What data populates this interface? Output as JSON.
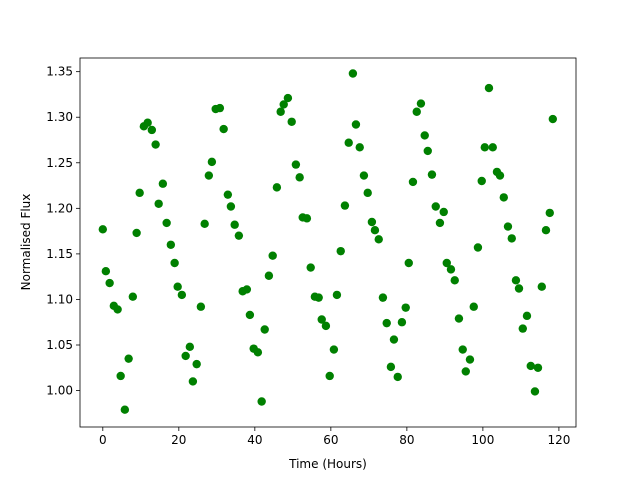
{
  "chart_data": {
    "type": "scatter",
    "xlabel": "Time (Hours)",
    "ylabel": "Normalised Flux",
    "color": "#008000",
    "xlim": [
      -6,
      124.5
    ],
    "ylim": [
      0.96,
      1.365
    ],
    "xticks": [
      0,
      20,
      40,
      60,
      80,
      100,
      120
    ],
    "yticks": [
      {
        "value": 1.0,
        "label": "1.00"
      },
      1.05,
      {
        "value": 1.1,
        "label": "1.10"
      },
      1.15,
      {
        "value": 1.2,
        "label": "1.20"
      },
      1.25,
      {
        "value": 1.3,
        "label": "1.30"
      },
      1.35
    ],
    "x": [
      0,
      0.8,
      1.8,
      2.9,
      3.9,
      4.7,
      5.8,
      6.8,
      7.9,
      8.9,
      9.7,
      10.8,
      11.8,
      12.9,
      13.9,
      14.7,
      15.8,
      16.8,
      17.9,
      18.9,
      19.7,
      20.8,
      21.8,
      22.9,
      23.7,
      24.7,
      25.8,
      26.8,
      27.9,
      28.7,
      29.7,
      30.8,
      31.8,
      32.9,
      33.7,
      34.7,
      35.8,
      36.8,
      37.9,
      38.7,
      39.7,
      40.8,
      41.8,
      42.6,
      43.7,
      44.7,
      45.8,
      46.8,
      47.6,
      48.7,
      49.7,
      50.8,
      51.8,
      52.6,
      53.7,
      54.7,
      55.8,
      56.8,
      57.6,
      58.7,
      59.7,
      60.8,
      61.6,
      62.6,
      63.7,
      64.7,
      65.8,
      66.6,
      67.6,
      68.7,
      69.7,
      70.8,
      71.6,
      72.6,
      73.7,
      74.7,
      75.8,
      76.6,
      77.6,
      78.7,
      79.7,
      80.5,
      81.6,
      82.6,
      83.7,
      84.7,
      85.5,
      86.6,
      87.6,
      88.7,
      89.7,
      90.5,
      91.6,
      92.6,
      93.7,
      94.7,
      95.5,
      96.6,
      97.6,
      98.7,
      99.7,
      100.5,
      101.6,
      102.6,
      103.7,
      104.5,
      105.5,
      106.6,
      107.6,
      108.7,
      109.5,
      110.5,
      111.6,
      112.6,
      113.7,
      114.5,
      115.5,
      116.6,
      117.6,
      118.4
    ],
    "values": [
      1.177,
      1.131,
      1.118,
      1.093,
      1.089,
      1.016,
      0.979,
      1.035,
      1.103,
      1.173,
      1.217,
      1.29,
      1.294,
      1.286,
      1.27,
      1.205,
      1.227,
      1.184,
      1.16,
      1.14,
      1.114,
      1.105,
      1.038,
      1.048,
      1.01,
      1.029,
      1.092,
      1.183,
      1.236,
      1.251,
      1.309,
      1.31,
      1.287,
      1.215,
      1.202,
      1.182,
      1.17,
      1.109,
      1.111,
      1.083,
      1.046,
      1.042,
      0.988,
      1.067,
      1.126,
      1.148,
      1.223,
      1.306,
      1.314,
      1.321,
      1.295,
      1.248,
      1.234,
      1.19,
      1.189,
      1.135,
      1.103,
      1.102,
      1.078,
      1.071,
      1.016,
      1.045,
      1.105,
      1.153,
      1.203,
      1.272,
      1.348,
      1.292,
      1.267,
      1.236,
      1.217,
      1.185,
      1.176,
      1.166,
      1.102,
      1.074,
      1.026,
      1.056,
      1.015,
      1.075,
      1.091,
      1.14,
      1.229,
      1.306,
      1.315,
      1.28,
      1.263,
      1.237,
      1.202,
      1.184,
      1.196,
      1.14,
      1.133,
      1.121,
      1.079,
      1.045,
      1.021,
      1.034,
      1.092,
      1.157,
      1.23,
      1.267,
      1.332,
      1.267,
      1.24,
      1.236,
      1.212,
      1.18,
      1.167,
      1.121,
      1.112,
      1.068,
      1.082,
      1.027,
      0.999,
      1.025,
      1.114,
      1.176,
      1.195,
      1.298
    ]
  }
}
